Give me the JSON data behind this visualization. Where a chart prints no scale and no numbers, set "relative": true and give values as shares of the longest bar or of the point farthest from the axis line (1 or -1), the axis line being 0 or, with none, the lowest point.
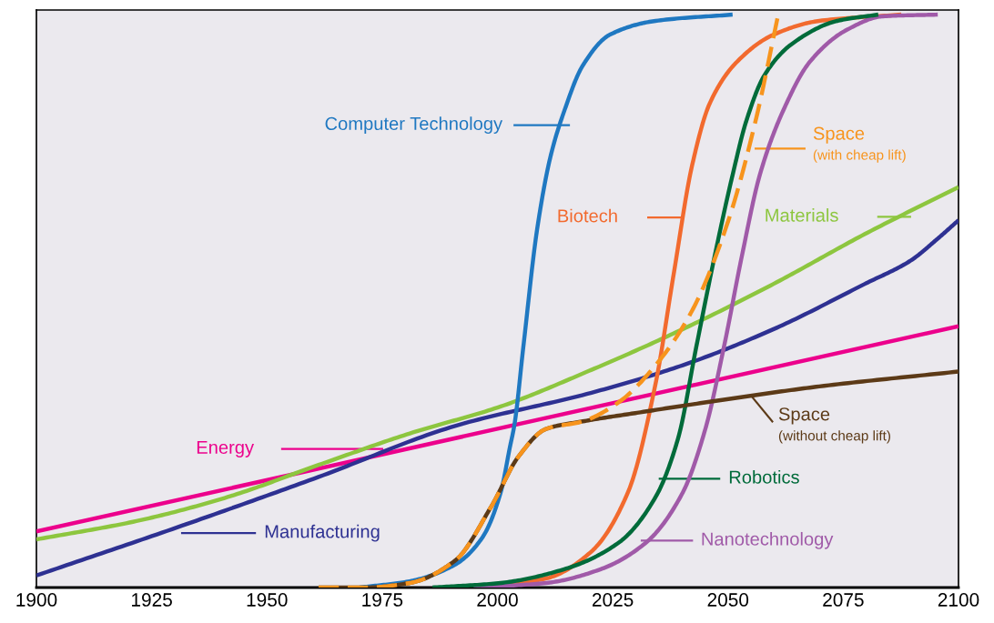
{
  "chart_data": {
    "type": "line",
    "relative": true,
    "xlim": [
      1900,
      2100
    ],
    "xticks": [
      1900,
      1925,
      1950,
      1975,
      2000,
      2025,
      2050,
      2075,
      2100
    ],
    "grid": false,
    "legend": "center",
    "line_style": "solid",
    "marker": "none",
    "series": [
      {
        "name": "Energy",
        "color": "#ec008c",
        "x": [
          1900,
          2100
        ],
        "values": [
          0.098,
          0.456
        ]
      },
      {
        "name": "Materials",
        "color": "#8dc63f",
        "x": [
          1900,
          1921.7,
          1941.5,
          1961.2,
          1981,
          2000.7,
          2020.4,
          2040.2,
          2059.9,
          2079.7,
          2100
        ],
        "values": [
          0.084,
          0.116,
          0.158,
          0.214,
          0.269,
          0.316,
          0.38,
          0.451,
          0.53,
          0.617,
          0.699
        ]
      },
      {
        "name": "Manufacturing",
        "color": "#2e3192",
        "x": [
          1900,
          1931.6,
          1961.2,
          1990.8,
          2020.4,
          2040.2,
          2059.9,
          2079.7,
          2089.5,
          2095.5,
          2100
        ],
        "values": [
          0.021,
          0.108,
          0.193,
          0.282,
          0.34,
          0.388,
          0.451,
          0.53,
          0.57,
          0.609,
          0.641
        ]
      },
      {
        "name": "Computer Technology",
        "color": "#1f78c1",
        "x": [
          1970.1,
          1981,
          1990.8,
          1996.7,
          2000.7,
          2002.7,
          2003.7,
          2005.6,
          2008.6,
          2011.5,
          2014.5,
          2018.5,
          2024.4,
          2034.3,
          2051
        ],
        "values": [
          0,
          0.011,
          0.04,
          0.087,
          0.166,
          0.245,
          0.285,
          0.419,
          0.625,
          0.752,
          0.832,
          0.911,
          0.965,
          0.989,
          1
        ]
      },
      {
        "name": "Biotech",
        "color": "#f26a2e",
        "x": [
          1995.8,
          2010.6,
          2020.4,
          2028.3,
          2034.3,
          2038.2,
          2042.2,
          2046.1,
          2052,
          2059.9,
          2069.8,
          2087.6
        ],
        "values": [
          0,
          0.016,
          0.063,
          0.166,
          0.356,
          0.546,
          0.736,
          0.846,
          0.918,
          0.965,
          0.989,
          1
        ]
      },
      {
        "name": "Nanotechnology",
        "color": "#a05aa8",
        "x": [
          1994.8,
          2010.6,
          2022.4,
          2032.3,
          2040.2,
          2045.1,
          2049.1,
          2053,
          2056.9,
          2061.9,
          2067.8,
          2075.7,
          2083.6,
          2095.5
        ],
        "values": [
          0,
          0.008,
          0.032,
          0.079,
          0.166,
          0.277,
          0.419,
          0.578,
          0.72,
          0.831,
          0.918,
          0.973,
          0.997,
          1
        ]
      },
      {
        "name": "Robotics",
        "color": "#006b3a",
        "x": [
          1985.9,
          2000.7,
          2014.5,
          2026.4,
          2034.3,
          2039.2,
          2043.1,
          2047.1,
          2051,
          2054,
          2057.9,
          2063.9,
          2073.7,
          2082.6
        ],
        "values": [
          0,
          0.008,
          0.032,
          0.079,
          0.158,
          0.261,
          0.419,
          0.578,
          0.72,
          0.815,
          0.894,
          0.949,
          0.989,
          1
        ]
      },
      {
        "name": "Space\n(without cheap lift)",
        "color": "#5c3a17",
        "x": [
          1961.2,
          1971.1,
          1981,
          1990.8,
          1998.7,
          2004.6,
          2010.6,
          2018.5,
          2030.3,
          2050.1,
          2069.8,
          2100
        ],
        "values": [
          0,
          0,
          0.008,
          0.047,
          0.142,
          0.229,
          0.277,
          0.29,
          0.305,
          0.329,
          0.351,
          0.377
        ]
      },
      {
        "name": "Space\n(with cheap lift)",
        "color": "#f7941d",
        "line_style": "dashed",
        "x": [
          1961.2,
          1971.1,
          1981,
          1990.8,
          1998.7,
          2004.6,
          2010.6,
          2018.5,
          2026.4,
          2034.3,
          2042.2,
          2050.1,
          2056,
          2060.9
        ],
        "values": [
          0,
          0,
          0.008,
          0.047,
          0.142,
          0.229,
          0.277,
          0.29,
          0.324,
          0.388,
          0.483,
          0.641,
          0.815,
          1
        ]
      }
    ]
  }
}
